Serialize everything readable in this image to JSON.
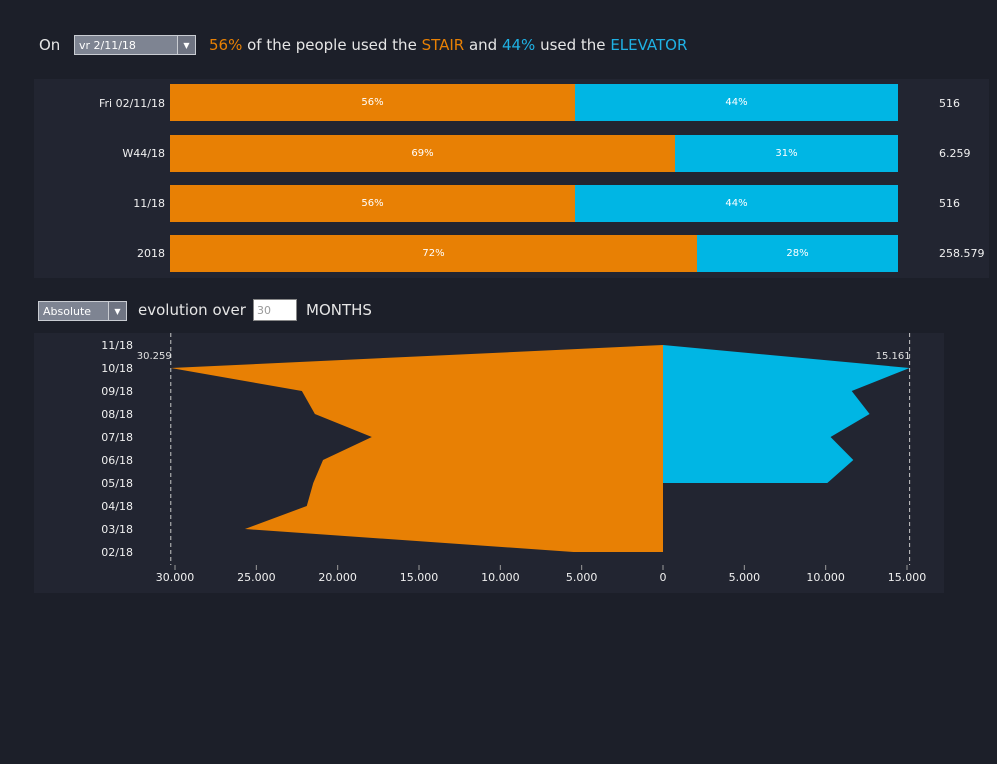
{
  "header": {
    "on_label": "On",
    "date_selector_value": "vr 2/11/18",
    "stair_pct": "56%",
    "text_middle1": " of the people used the ",
    "stair_word": "STAIR",
    "text_and": " and ",
    "elevator_pct": "44%",
    "text_middle2": " used the ",
    "elevator_word": "ELEVATOR"
  },
  "colors": {
    "stair": "#e88004",
    "elevator": "#00b6e4",
    "background": "#1c1f29",
    "panel": "#222531"
  },
  "stacked_rows": [
    {
      "label": "Fri 02/11/18",
      "stair_pct": "56%",
      "elevator_pct": "44%",
      "total": "516"
    },
    {
      "label": "W44/18",
      "stair_pct": "69%",
      "elevator_pct": "31%",
      "total": "6.259"
    },
    {
      "label": "11/18",
      "stair_pct": "56%",
      "elevator_pct": "44%",
      "total": "516"
    },
    {
      "label": "2018",
      "stair_pct": "72%",
      "elevator_pct": "28%",
      "total": "258.579"
    }
  ],
  "evolution": {
    "mode_value": "Absolute",
    "label": "evolution over",
    "months_value": "30",
    "unit_label": "MONTHS"
  },
  "chart_data": [
    {
      "type": "bar",
      "categories": [
        "Fri 02/11/18",
        "W44/18",
        "11/18",
        "2018"
      ],
      "series": [
        {
          "name": "STAIR",
          "values": [
            56,
            69,
            56,
            72
          ]
        },
        {
          "name": "ELEVATOR",
          "values": [
            44,
            31,
            44,
            28
          ]
        }
      ],
      "totals": [
        "516",
        "6.259",
        "516",
        "258.579"
      ]
    },
    {
      "type": "area",
      "categories": [
        "11/18",
        "10/18",
        "09/18",
        "08/18",
        "07/18",
        "06/18",
        "05/18",
        "04/18",
        "03/18",
        "02/18"
      ],
      "series": [
        {
          "name": "STAIR",
          "values": [
            0,
            30259,
            22200,
            21400,
            17900,
            20900,
            21500,
            21900,
            25700,
            5500
          ]
        },
        {
          "name": "ELEVATOR",
          "values": [
            0,
            15161,
            11600,
            12700,
            10300,
            11700,
            10100,
            0,
            0,
            0
          ]
        }
      ],
      "x_ticks": [
        "30.000",
        "25.000",
        "20.000",
        "15.000",
        "10.000",
        "5.000",
        "0",
        "5.000",
        "10.000",
        "15.000"
      ],
      "max_labels": {
        "stair": "30.259",
        "elevator": "15.161"
      },
      "xlim": [
        -30000,
        15000
      ]
    }
  ]
}
